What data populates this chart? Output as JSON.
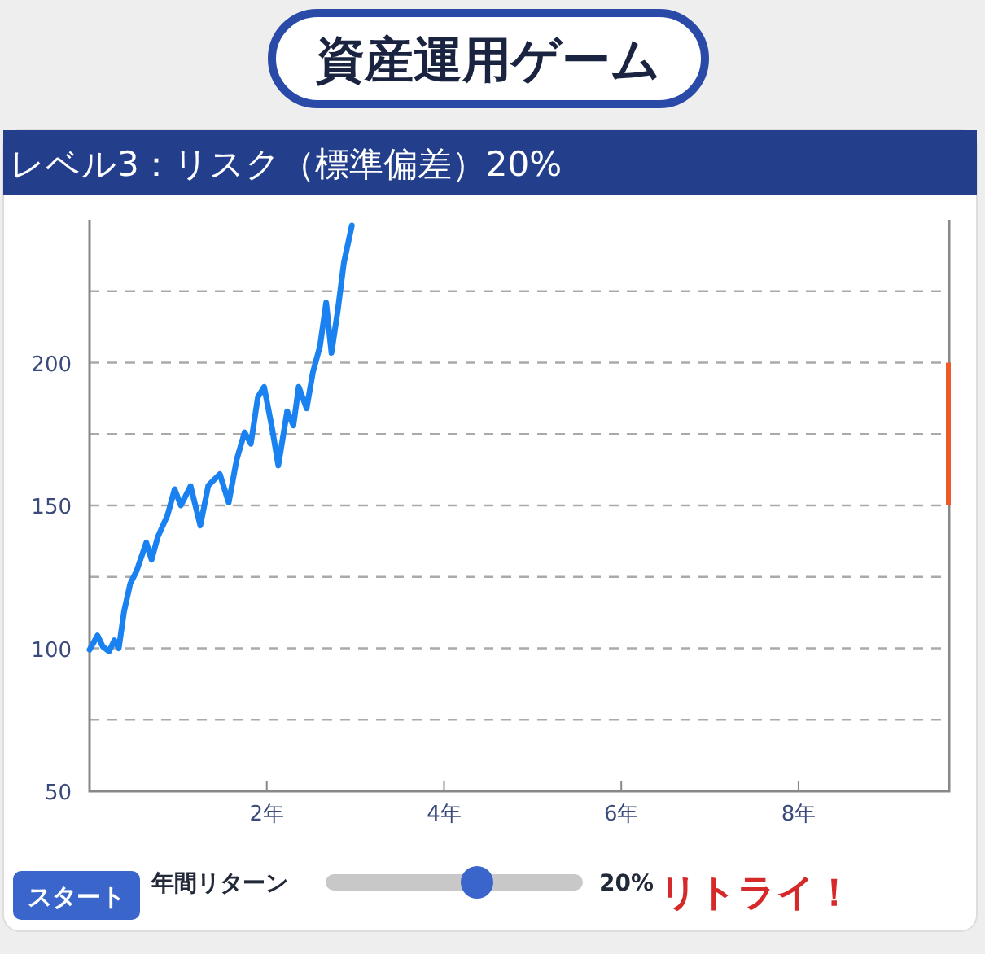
{
  "chart_data": {
    "type": "line",
    "title": "資産運用ゲーム",
    "subtitle": "レベル3：リスク（標準偏差）20%",
    "xlim": [
      0,
      9.7
    ],
    "xticks": [
      {
        "value": 2,
        "label": "2年"
      },
      {
        "value": 4,
        "label": "4年"
      },
      {
        "value": 6,
        "label": "6年"
      },
      {
        "value": 8,
        "label": "8年"
      }
    ],
    "ylim": [
      50,
      250
    ],
    "yticks": [
      50,
      {
        "value": 75,
        "label": null
      },
      100,
      {
        "value": 125,
        "label": null
      },
      150,
      {
        "value": 175,
        "label": null
      },
      200,
      {
        "value": 225,
        "label": null
      }
    ],
    "grid": "y",
    "line_style": "solid",
    "marker": "none",
    "series": [
      {
        "type": "bar",
        "color": "#f05a28",
        "x": [
          9.7
        ],
        "base": [
          150
        ],
        "values": [
          50
        ]
      },
      {
        "color": "#1a82f0",
        "x": [
          0,
          0.09,
          0.15,
          0.22,
          0.28,
          0.33,
          0.39,
          0.46,
          0.53,
          0.64,
          0.7,
          0.77,
          0.88,
          0.96,
          1.03,
          1.14,
          1.25,
          1.34,
          1.47,
          1.57,
          1.66,
          1.75,
          1.82,
          1.9,
          1.97,
          2.06,
          2.13,
          2.23,
          2.3,
          2.36,
          2.45,
          2.52,
          2.6,
          2.67,
          2.73,
          2.8,
          2.87,
          2.96
        ],
        "values": [
          99.5,
          104.5,
          100.6,
          98.9,
          102.8,
          100,
          113,
          122.7,
          127,
          137,
          131,
          139,
          146.6,
          155.7,
          150,
          156.8,
          143,
          157,
          161,
          151,
          166,
          175.6,
          171.6,
          188,
          191.5,
          177,
          164,
          183,
          178,
          191.5,
          184,
          196.6,
          205.7,
          221,
          203.4,
          218,
          235,
          248
        ]
      }
    ],
    "annotations": [
      "スタート",
      "年間リターン",
      "20%",
      "リトライ！"
    ]
  }
}
